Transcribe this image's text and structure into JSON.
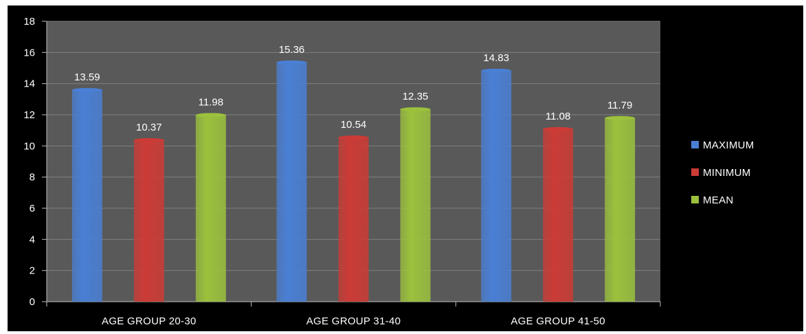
{
  "chart_data": {
    "type": "bar",
    "categories": [
      "AGE GROUP 20-30",
      "AGE GROUP 31-40",
      "AGE GROUP 41-50"
    ],
    "series": [
      {
        "name": "MAXIMUM",
        "values": [
          13.59,
          15.36,
          14.83
        ],
        "color": "#4a7fd4"
      },
      {
        "name": "MINIMUM",
        "values": [
          10.37,
          10.54,
          11.08
        ],
        "color": "#cc3b36"
      },
      {
        "name": "MEAN",
        "values": [
          11.98,
          12.35,
          11.79
        ],
        "color": "#9bc13d"
      }
    ],
    "data_labels": [
      [
        "13.59",
        "15.36",
        "14.83"
      ],
      [
        "10.37",
        "10.54",
        "11.08"
      ],
      [
        "11.98",
        "12.35",
        "11.79"
      ]
    ],
    "ylim": [
      0,
      18
    ],
    "yticks": [
      "0",
      "2",
      "4",
      "6",
      "8",
      "10",
      "12",
      "14",
      "16",
      "18"
    ],
    "grid": true,
    "legend_position": "right",
    "background": "#000000",
    "plot_background": "#595959",
    "gridline_color": "#808080",
    "text_color": "#ffffff"
  }
}
